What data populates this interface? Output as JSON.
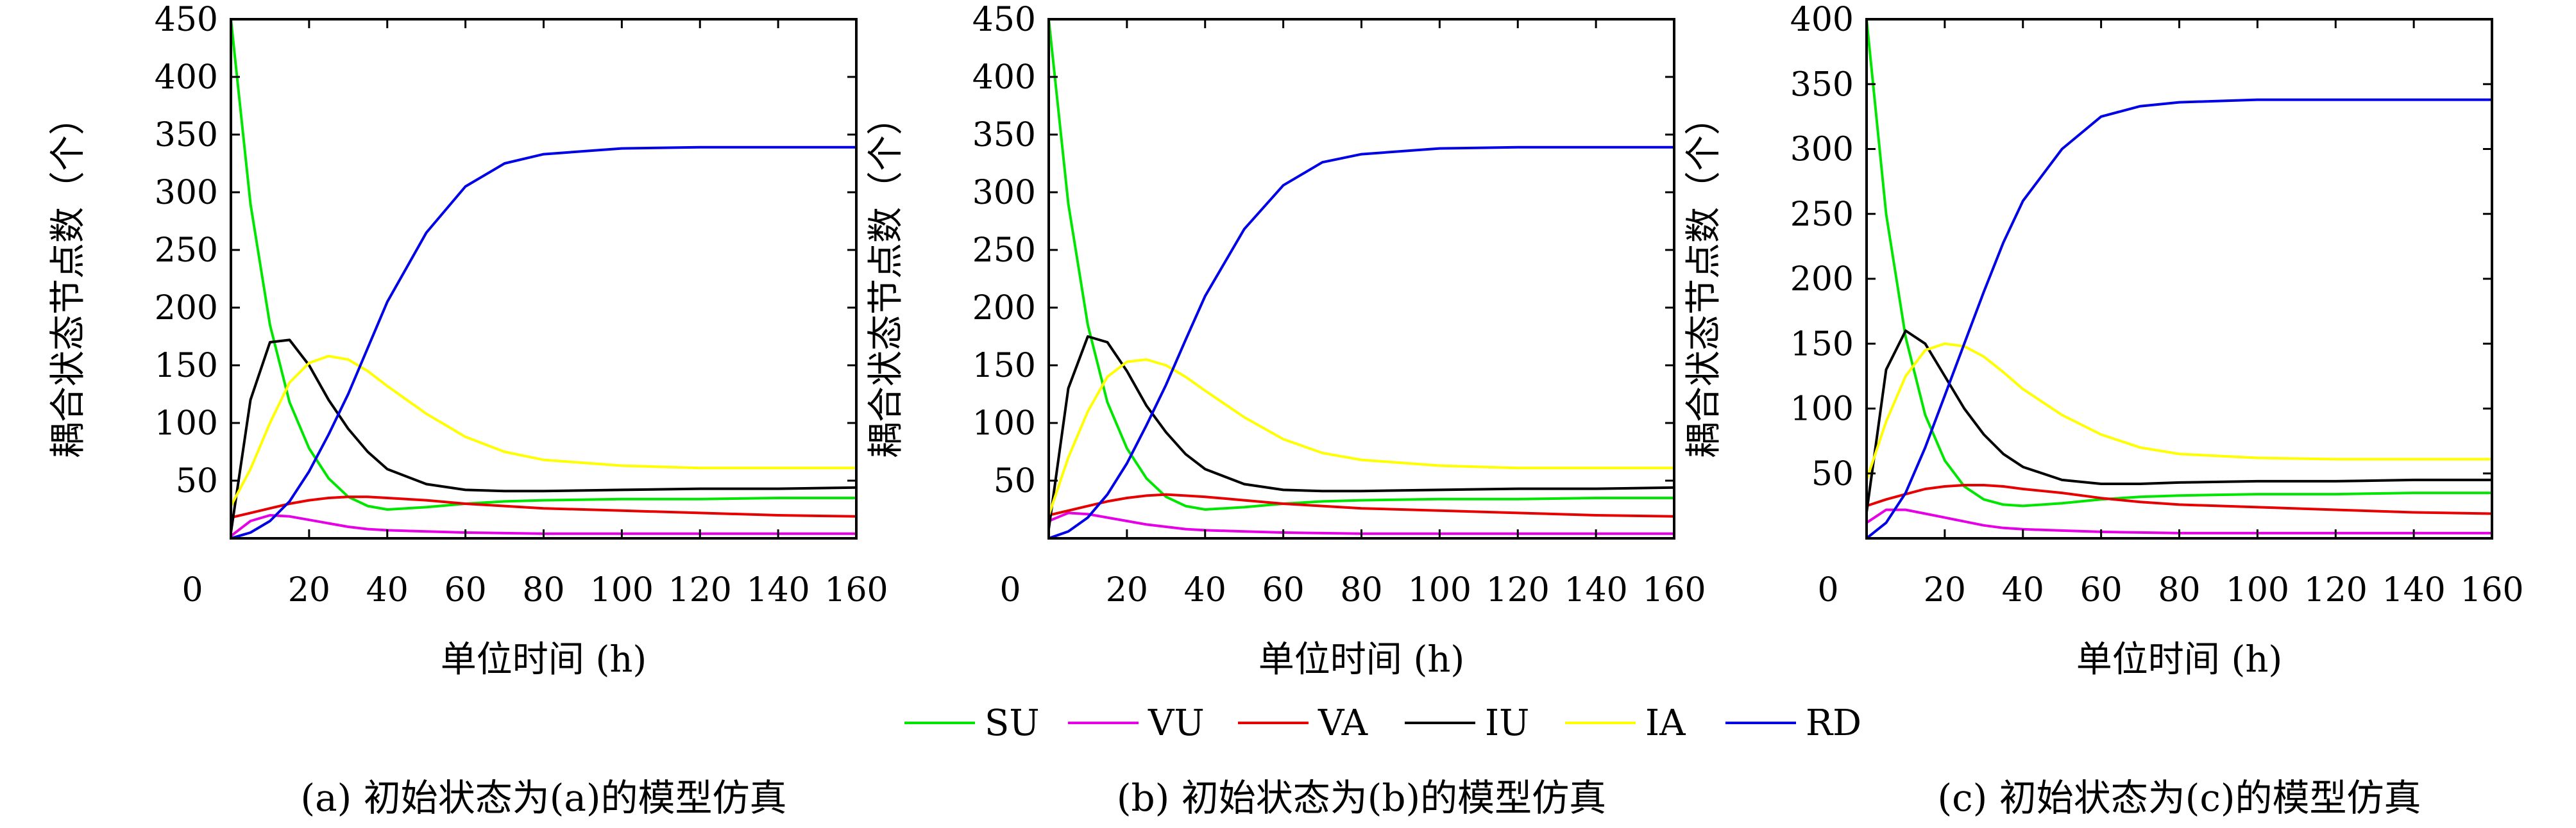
{
  "chart_data": [
    {
      "type": "line",
      "caption": "(a) 初始状态为(a)的模型仿真",
      "xlabel": "单位时间 (h)",
      "ylabel": "耦合状态节点数（个）",
      "xlim": [
        0,
        160
      ],
      "ylim": [
        0,
        450
      ],
      "x_ticks": [
        "0",
        "20",
        "40",
        "60",
        "80",
        "100",
        "120",
        "140",
        "160"
      ],
      "y_ticks": [
        "50",
        "100",
        "150",
        "200",
        "250",
        "300",
        "350",
        "400",
        "450"
      ],
      "x": [
        0,
        5,
        10,
        15,
        20,
        25,
        30,
        35,
        40,
        50,
        60,
        70,
        80,
        100,
        120,
        140,
        160
      ],
      "series": [
        {
          "name": "SU",
          "values": [
            450,
            290,
            185,
            118,
            78,
            52,
            36,
            28,
            25,
            27,
            30,
            32,
            33,
            34,
            34,
            35,
            35
          ]
        },
        {
          "name": "VU",
          "values": [
            2,
            15,
            20,
            19,
            16,
            13,
            10,
            8,
            7,
            6,
            5,
            4.5,
            4,
            4,
            4,
            4,
            4
          ]
        },
        {
          "name": "VA",
          "values": [
            18,
            22,
            26,
            30,
            33,
            35,
            36,
            36,
            35,
            33,
            30,
            28,
            26,
            24,
            22,
            20,
            19
          ]
        },
        {
          "name": "IU",
          "values": [
            5,
            120,
            170,
            172,
            150,
            120,
            95,
            75,
            60,
            47,
            42,
            41,
            41,
            42,
            43,
            43,
            44
          ]
        },
        {
          "name": "IA",
          "values": [
            28,
            60,
            100,
            135,
            152,
            158,
            155,
            145,
            132,
            108,
            88,
            75,
            68,
            63,
            61,
            61,
            61
          ]
        },
        {
          "name": "RD",
          "values": [
            0,
            5,
            15,
            32,
            58,
            90,
            125,
            165,
            205,
            265,
            305,
            325,
            333,
            338,
            339,
            339,
            339
          ]
        }
      ],
      "colors": {
        "SU": "#00e600",
        "VU": "#e600e6",
        "VA": "#e60000",
        "IU": "#000000",
        "IA": "#ffff00",
        "RD": "#0000e6"
      }
    },
    {
      "type": "line",
      "caption": "(b) 初始状态为(b)的模型仿真",
      "xlabel": "单位时间 (h)",
      "ylabel": "耦合状态节点数（个）",
      "xlim": [
        0,
        160
      ],
      "ylim": [
        0,
        450
      ],
      "x_ticks": [
        "0",
        "20",
        "40",
        "60",
        "80",
        "100",
        "120",
        "140",
        "160"
      ],
      "y_ticks": [
        "50",
        "100",
        "150",
        "200",
        "250",
        "300",
        "350",
        "400",
        "450"
      ],
      "x": [
        0,
        5,
        10,
        15,
        20,
        25,
        30,
        35,
        40,
        50,
        60,
        70,
        80,
        100,
        120,
        140,
        160
      ],
      "series": [
        {
          "name": "SU",
          "values": [
            450,
            290,
            185,
            118,
            78,
            52,
            36,
            28,
            25,
            27,
            30,
            32,
            33,
            34,
            34,
            35,
            35
          ]
        },
        {
          "name": "VU",
          "values": [
            15,
            22,
            21,
            18,
            15,
            12,
            10,
            8,
            7,
            6,
            5,
            4.5,
            4,
            4,
            4,
            4,
            4
          ]
        },
        {
          "name": "VA",
          "values": [
            20,
            24,
            28,
            32,
            35,
            37,
            38,
            37,
            36,
            33,
            30,
            28,
            26,
            24,
            22,
            20,
            19
          ]
        },
        {
          "name": "IU",
          "values": [
            8,
            130,
            175,
            170,
            145,
            115,
            92,
            73,
            60,
            47,
            42,
            41,
            41,
            42,
            43,
            43,
            44
          ]
        },
        {
          "name": "IA",
          "values": [
            20,
            70,
            110,
            140,
            153,
            155,
            150,
            140,
            128,
            105,
            86,
            74,
            68,
            63,
            61,
            61,
            61
          ]
        },
        {
          "name": "RD",
          "values": [
            0,
            6,
            18,
            38,
            65,
            98,
            133,
            172,
            210,
            268,
            306,
            326,
            333,
            338,
            339,
            339,
            339
          ]
        }
      ],
      "colors": {
        "SU": "#00e600",
        "VU": "#e600e6",
        "VA": "#e60000",
        "IU": "#000000",
        "IA": "#ffff00",
        "RD": "#0000e6"
      }
    },
    {
      "type": "line",
      "caption": "(c) 初始状态为(c)的模型仿真",
      "xlabel": "单位时间 (h)",
      "ylabel": "耦合状态节点数（个）",
      "xlim": [
        0,
        160
      ],
      "ylim": [
        0,
        400
      ],
      "x_ticks": [
        "0",
        "20",
        "40",
        "60",
        "80",
        "100",
        "120",
        "140",
        "160"
      ],
      "y_ticks": [
        "50",
        "100",
        "150",
        "200",
        "250",
        "300",
        "350",
        "400"
      ],
      "x": [
        0,
        5,
        10,
        15,
        20,
        25,
        30,
        35,
        40,
        50,
        60,
        70,
        80,
        100,
        120,
        140,
        160
      ],
      "series": [
        {
          "name": "SU",
          "values": [
            400,
            250,
            155,
            95,
            60,
            40,
            30,
            26,
            25,
            27,
            30,
            32,
            33,
            34,
            34,
            35,
            35
          ]
        },
        {
          "name": "VU",
          "values": [
            12,
            22,
            22,
            19,
            16,
            13,
            10,
            8,
            7,
            6,
            5,
            4.5,
            4,
            4,
            4,
            4,
            4
          ]
        },
        {
          "name": "VA",
          "values": [
            25,
            30,
            34,
            38,
            40,
            41,
            41,
            40,
            38,
            35,
            31,
            28,
            26,
            24,
            22,
            20,
            19
          ]
        },
        {
          "name": "IU",
          "values": [
            20,
            130,
            160,
            150,
            125,
            100,
            80,
            65,
            55,
            45,
            42,
            42,
            43,
            44,
            44,
            45,
            45
          ]
        },
        {
          "name": "IA",
          "values": [
            45,
            90,
            125,
            145,
            150,
            148,
            140,
            128,
            115,
            95,
            80,
            70,
            65,
            62,
            61,
            61,
            61
          ]
        },
        {
          "name": "RD",
          "values": [
            0,
            12,
            35,
            70,
            110,
            150,
            190,
            228,
            260,
            300,
            325,
            333,
            336,
            338,
            338,
            338,
            338
          ]
        }
      ],
      "colors": {
        "SU": "#00e600",
        "VU": "#e600e6",
        "VA": "#e60000",
        "IU": "#000000",
        "IA": "#ffff00",
        "RD": "#0000e6"
      }
    }
  ],
  "legend": [
    {
      "name": "SU",
      "color": "#00e600"
    },
    {
      "name": "VU",
      "color": "#e600e6"
    },
    {
      "name": "VA",
      "color": "#e60000"
    },
    {
      "name": "IU",
      "color": "#000000"
    },
    {
      "name": "IA",
      "color": "#ffff00"
    },
    {
      "name": "RD",
      "color": "#0000e6"
    }
  ]
}
